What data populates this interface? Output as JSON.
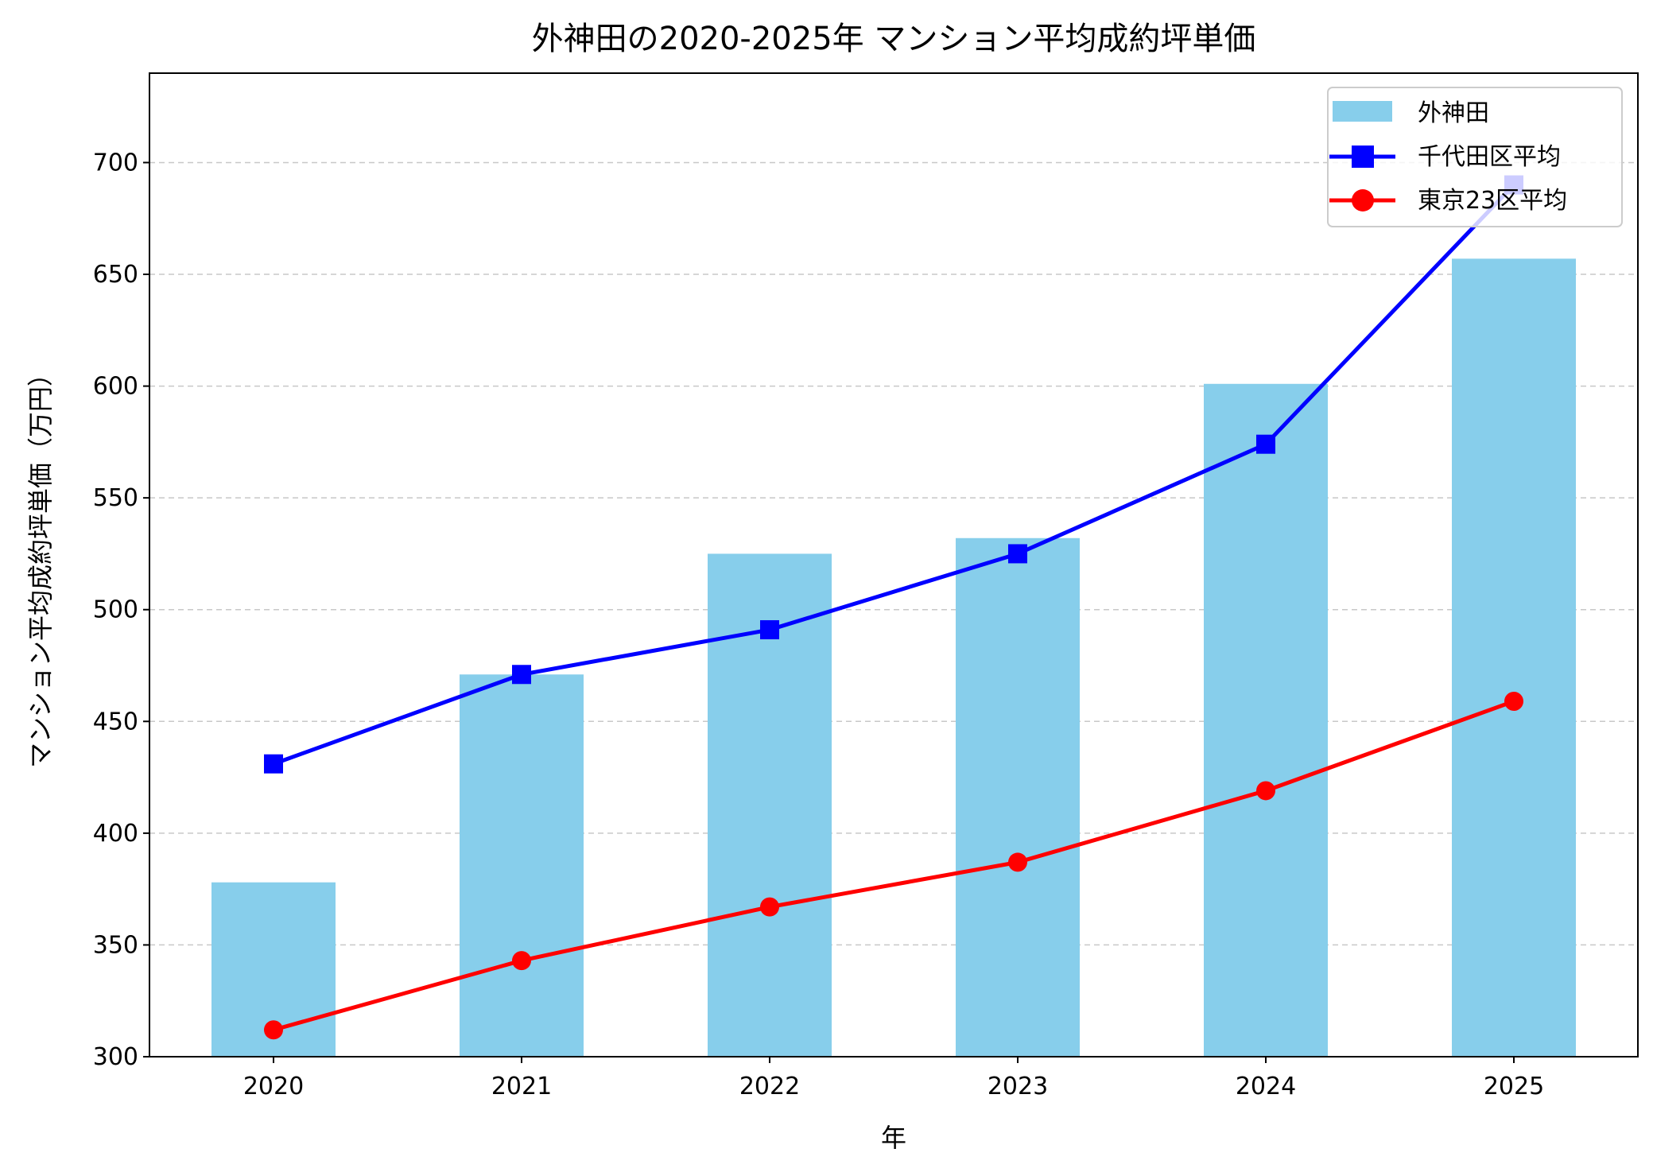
{
  "chart_data": {
    "type": "bar+line",
    "title": "外神田の2020-2025年 マンション平均成約坪単価",
    "xlabel": "年",
    "ylabel": "マンション平均成約坪単価（万円）",
    "categories": [
      "2020",
      "2021",
      "2022",
      "2023",
      "2024",
      "2025"
    ],
    "ylim": [
      300,
      740
    ],
    "yticks": [
      300,
      350,
      400,
      450,
      500,
      550,
      600,
      650,
      700
    ],
    "grid": "y-dashed",
    "legend_position": "top-right",
    "series": [
      {
        "name": "外神田",
        "kind": "bar",
        "color": "#87CEEB",
        "values": [
          378,
          471,
          525,
          532,
          601,
          657
        ]
      },
      {
        "name": "千代田区平均",
        "kind": "line",
        "marker": "square",
        "color": "#0000FF",
        "values": [
          431,
          471,
          491,
          525,
          574,
          690
        ]
      },
      {
        "name": "東京23区平均",
        "kind": "line",
        "marker": "circle",
        "color": "#FF0000",
        "values": [
          312,
          343,
          367,
          387,
          419,
          459
        ]
      }
    ]
  }
}
